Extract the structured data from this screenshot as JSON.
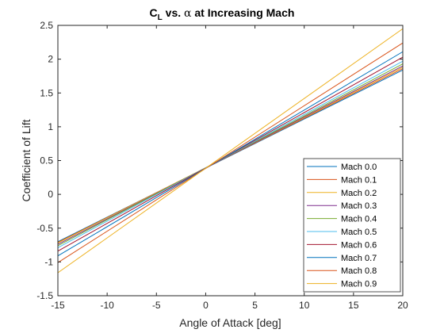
{
  "chart_data": {
    "type": "line",
    "title_parts": {
      "c": "C",
      "sub": "L",
      "middle": " vs. ",
      "alpha": "α",
      "rest": " at Increasing Mach"
    },
    "xlabel": "Angle of Attack [deg]",
    "ylabel": "Coefficient of Lift",
    "xlim": [
      -15,
      20
    ],
    "ylim": [
      -1.5,
      2.5
    ],
    "xticks": [
      -15,
      -10,
      -5,
      0,
      5,
      10,
      15,
      20
    ],
    "yticks": [
      -1.5,
      -1,
      -0.5,
      0,
      0.5,
      1,
      1.5,
      2,
      2.5
    ],
    "grid": false,
    "legend_position": "bottom-right",
    "x": [
      -15,
      20
    ],
    "series": [
      {
        "name": "Mach 0.0",
        "values": [
          -0.7,
          1.84
        ],
        "color": "#0072BD"
      },
      {
        "name": "Mach 0.1",
        "values": [
          -0.71,
          1.86
        ],
        "color": "#D95319"
      },
      {
        "name": "Mach 0.2",
        "values": [
          -0.72,
          1.88
        ],
        "color": "#EDB120"
      },
      {
        "name": "Mach 0.3",
        "values": [
          -0.74,
          1.9
        ],
        "color": "#7E2F8E"
      },
      {
        "name": "Mach 0.4",
        "values": [
          -0.76,
          1.93
        ],
        "color": "#77AC30"
      },
      {
        "name": "Mach 0.5",
        "values": [
          -0.79,
          1.97
        ],
        "color": "#4DBEEE"
      },
      {
        "name": "Mach 0.6",
        "values": [
          -0.84,
          2.03
        ],
        "color": "#A2142F"
      },
      {
        "name": "Mach 0.7",
        "values": [
          -0.91,
          2.11
        ],
        "color": "#0072BD"
      },
      {
        "name": "Mach 0.8",
        "values": [
          -1.01,
          2.24
        ],
        "color": "#D95319"
      },
      {
        "name": "Mach 0.9",
        "values": [
          -1.16,
          2.45
        ],
        "color": "#EDB120"
      }
    ]
  }
}
